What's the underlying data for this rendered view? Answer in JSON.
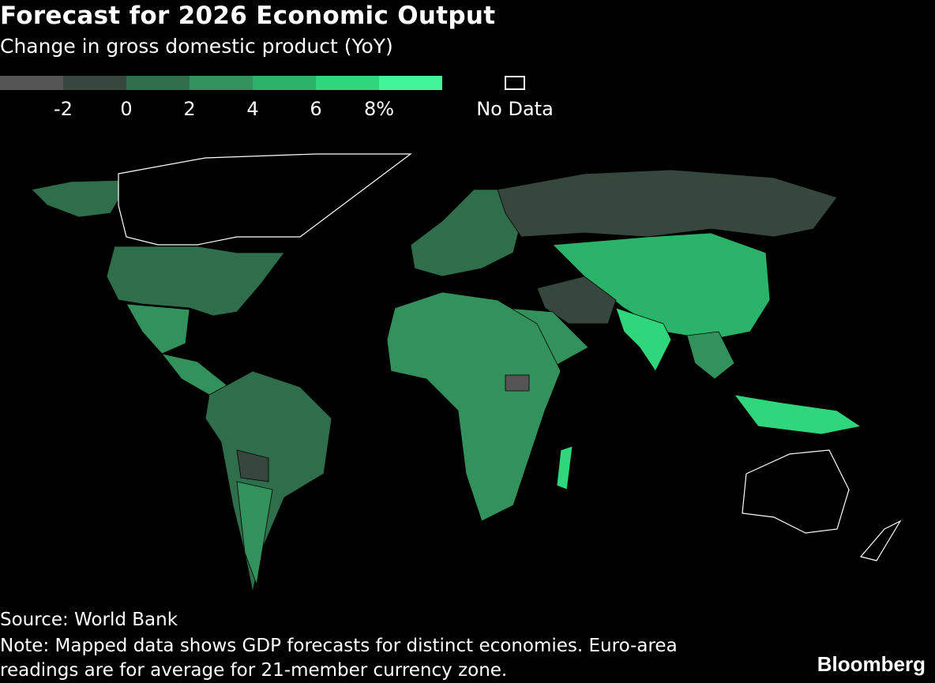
{
  "title": "Forecast for 2026 Economic Output",
  "subtitle": "Change in gross domestic product (YoY)",
  "legend": {
    "colors": [
      "#545454",
      "#36483d",
      "#2e6e4b",
      "#33925c",
      "#2bb469",
      "#2fd67c",
      "#42f59b"
    ],
    "lim": [
      -4,
      10
    ],
    "ticks": [
      -2,
      0,
      2,
      4,
      6,
      {
        "value": 8,
        "label": "8%"
      }
    ],
    "no_data_label": "No Data"
  },
  "source": "Source: World Bank",
  "note": "Note: Mapped data shows GDP forecasts for distinct economies. Euro-area readings are for average for 21-member currency zone.",
  "brand": "Bloomberg"
}
